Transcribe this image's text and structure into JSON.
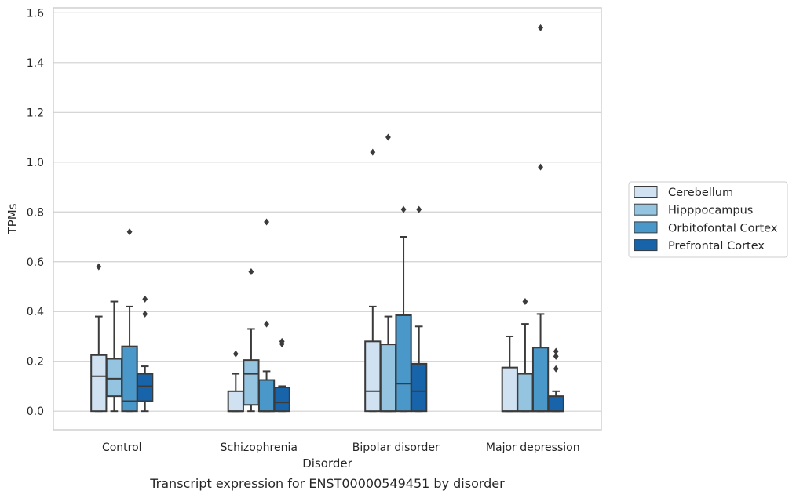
{
  "chart_data": {
    "type": "box",
    "xlabel": "Disorder",
    "ylabel": "TPMs",
    "caption": "Transcript expression for ENST00000549451 by disorder",
    "ylim": [
      -0.075,
      1.62
    ],
    "yticks": [
      "0.0",
      "0.2",
      "0.4",
      "0.6",
      "0.8",
      "1.0",
      "1.2",
      "1.4",
      "1.6"
    ],
    "grid": true,
    "legend_position": "right",
    "categories": [
      "Control",
      "Schizophrenia",
      "Bipolar disorder",
      "Major depression"
    ],
    "series": [
      {
        "name": "Cerebellum",
        "color": "#d0e1f2",
        "boxes": [
          {
            "whislo": 0.0,
            "q1": 0.0,
            "med": 0.14,
            "q3": 0.225,
            "whishi": 0.38,
            "fliers": [
              0.58
            ]
          },
          {
            "whislo": 0.0,
            "q1": 0.0,
            "med": 0.0,
            "q3": 0.08,
            "whishi": 0.15,
            "fliers": [
              0.23
            ]
          },
          {
            "whislo": 0.0,
            "q1": 0.0,
            "med": 0.08,
            "q3": 0.28,
            "whishi": 0.42,
            "fliers": [
              1.04
            ]
          },
          {
            "whislo": 0.0,
            "q1": 0.0,
            "med": 0.0,
            "q3": 0.175,
            "whishi": 0.3,
            "fliers": []
          }
        ]
      },
      {
        "name": "Hipppocampus",
        "color": "#94c4df",
        "boxes": [
          {
            "whislo": 0.0,
            "q1": 0.06,
            "med": 0.13,
            "q3": 0.21,
            "whishi": 0.44,
            "fliers": []
          },
          {
            "whislo": 0.0,
            "q1": 0.025,
            "med": 0.15,
            "q3": 0.205,
            "whishi": 0.33,
            "fliers": [
              0.56
            ]
          },
          {
            "whislo": 0.0,
            "q1": 0.0,
            "med": 0.0,
            "q3": 0.268,
            "whishi": 0.38,
            "fliers": [
              1.1
            ]
          },
          {
            "whislo": 0.0,
            "q1": 0.0,
            "med": 0.0,
            "q3": 0.15,
            "whishi": 0.35,
            "fliers": [
              0.44
            ]
          }
        ]
      },
      {
        "name": "Orbitofontal Cortex",
        "color": "#4a98c9",
        "boxes": [
          {
            "whislo": 0.0,
            "q1": 0.0,
            "med": 0.04,
            "q3": 0.26,
            "whishi": 0.42,
            "fliers": [
              0.72
            ]
          },
          {
            "whislo": 0.0,
            "q1": 0.0,
            "med": 0.0,
            "q3": 0.125,
            "whishi": 0.16,
            "fliers": [
              0.35,
              0.76
            ]
          },
          {
            "whislo": 0.0,
            "q1": 0.0,
            "med": 0.11,
            "q3": 0.385,
            "whishi": 0.7,
            "fliers": [
              0.81
            ]
          },
          {
            "whislo": 0.0,
            "q1": 0.0,
            "med": 0.0,
            "q3": 0.255,
            "whishi": 0.39,
            "fliers": [
              0.98,
              1.54
            ]
          }
        ]
      },
      {
        "name": "Prefrontal Cortex",
        "color": "#1764ab",
        "boxes": [
          {
            "whislo": 0.0,
            "q1": 0.04,
            "med": 0.1,
            "q3": 0.15,
            "whishi": 0.18,
            "fliers": [
              0.39,
              0.45
            ]
          },
          {
            "whislo": 0.0,
            "q1": 0.0,
            "med": 0.035,
            "q3": 0.095,
            "whishi": 0.1,
            "fliers": [
              0.27,
              0.28
            ]
          },
          {
            "whislo": 0.0,
            "q1": 0.0,
            "med": 0.08,
            "q3": 0.19,
            "whishi": 0.34,
            "fliers": [
              0.81
            ]
          },
          {
            "whislo": 0.0,
            "q1": 0.0,
            "med": 0.0,
            "q3": 0.06,
            "whishi": 0.08,
            "fliers": [
              0.17,
              0.22,
              0.24
            ]
          }
        ]
      }
    ]
  }
}
